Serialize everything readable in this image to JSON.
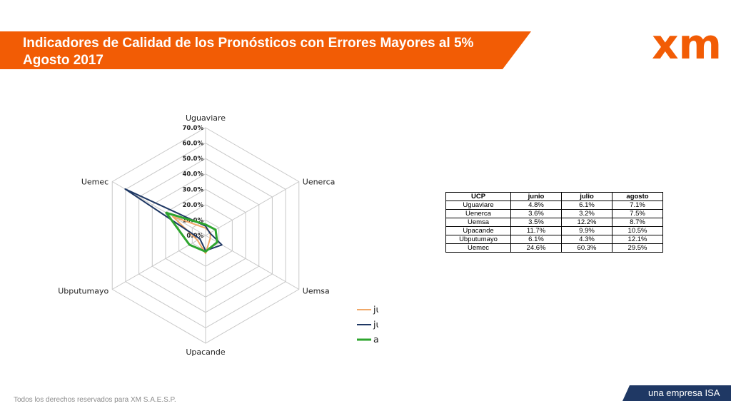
{
  "header": {
    "title_line1": "Indicadores de Calidad de los Pronósticos con Errores Mayores al 5%",
    "title_line2": "Agosto 2017",
    "logo_text": "xm",
    "brand_color": "#f25c05"
  },
  "chart_data": {
    "type": "radar",
    "categories": [
      "Uguaviare",
      "Uenerca",
      "Uemsa",
      "Upacande",
      "Ubputumayo",
      "Uemec"
    ],
    "ticks": [
      "0.0%",
      "10.0%",
      "20.0%",
      "30.0%",
      "40.0%",
      "50.0%",
      "60.0%",
      "70.0%"
    ],
    "rlim": [
      0,
      70
    ],
    "series": [
      {
        "name": "junio",
        "color": "#f0a868",
        "values": [
          4.8,
          3.6,
          3.5,
          11.7,
          6.1,
          24.6
        ]
      },
      {
        "name": "julio",
        "color": "#1f3864",
        "values": [
          6.1,
          3.2,
          12.2,
          9.9,
          4.3,
          60.3
        ]
      },
      {
        "name": "agosto",
        "color": "#2ea52e",
        "values": [
          7.1,
          7.5,
          8.7,
          10.5,
          12.1,
          29.5
        ]
      }
    ],
    "legend_position": "bottom-right"
  },
  "table": {
    "headers": [
      "UCP",
      "junio",
      "julio",
      "agosto"
    ],
    "rows": [
      [
        "Uguaviare",
        "4.8%",
        "6.1%",
        "7.1%"
      ],
      [
        "Uenerca",
        "3.6%",
        "3.2%",
        "7.5%"
      ],
      [
        "Uemsa",
        "3.5%",
        "12.2%",
        "8.7%"
      ],
      [
        "Upacande",
        "11.7%",
        "9.9%",
        "10.5%"
      ],
      [
        "Ubputumayo",
        "6.1%",
        "4.3%",
        "12.1%"
      ],
      [
        "Uemec",
        "24.6%",
        "60.3%",
        "29.5%"
      ]
    ]
  },
  "footer": {
    "copyright": "Todos los derechos reservados para XM S.A.E.S.P.",
    "tagline": "una empresa ISA",
    "tagline_color": "#1f3864"
  }
}
